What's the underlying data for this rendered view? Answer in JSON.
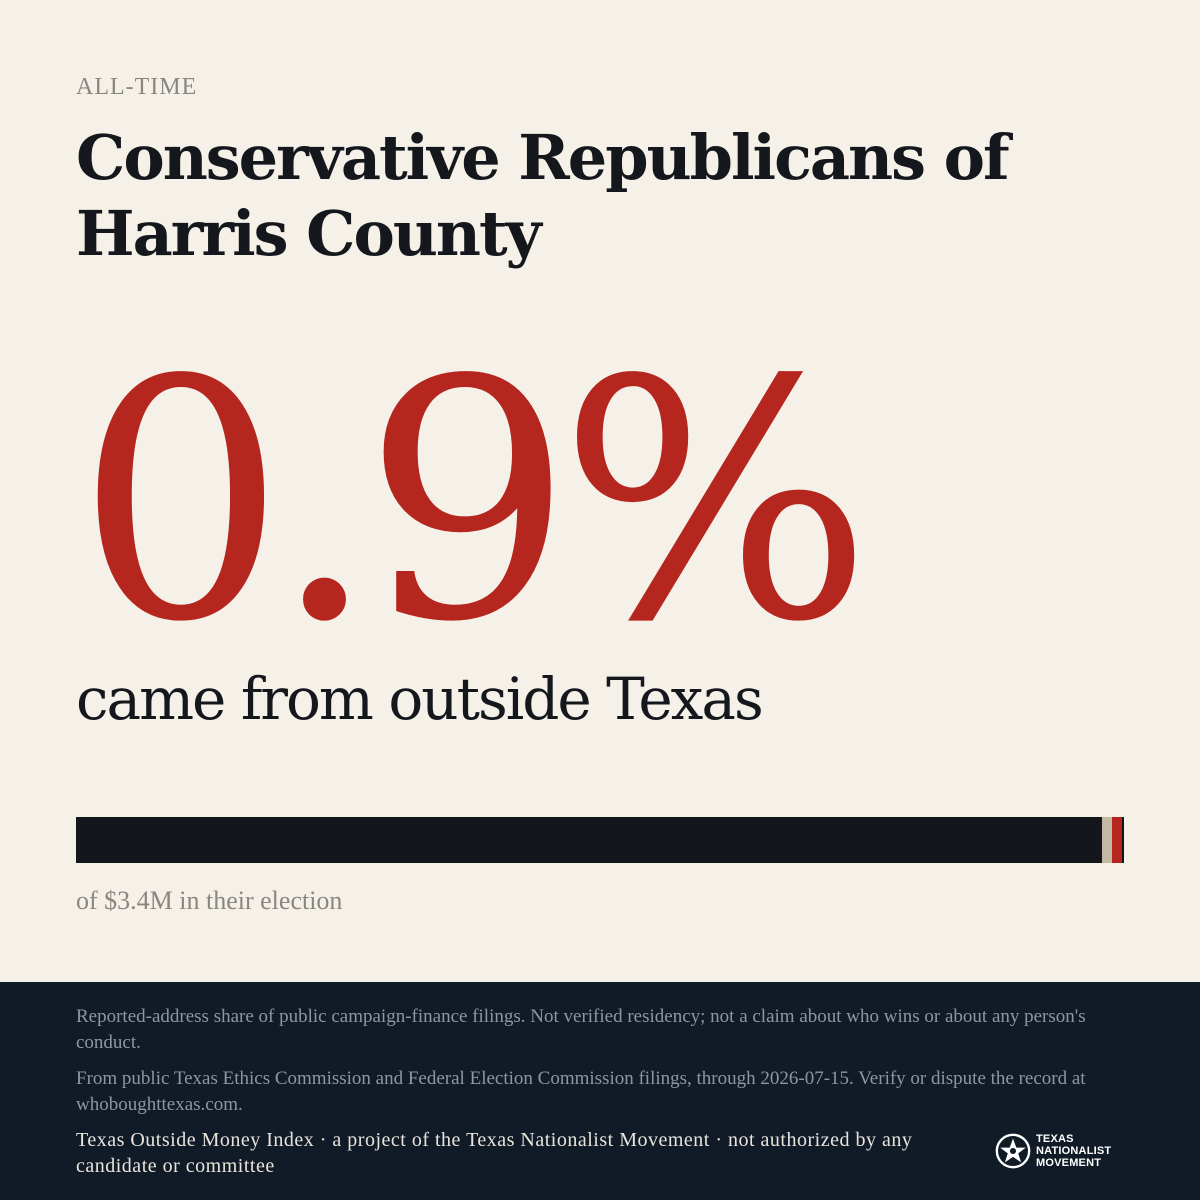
{
  "eyebrow": "ALL-TIME",
  "title": "Conservative Republicans of Harris County",
  "headline_percent": "0.9%",
  "headline_subtitle": "came from outside Texas",
  "share_bar": {
    "outside_share_fraction": 0.009,
    "colors": {
      "in_state": "#13161b",
      "outside_marker": "#c3b8a4",
      "outside": "#b5261e"
    }
  },
  "total_note": "of $3.4M in their election",
  "footer": {
    "disclaimer": "Reported-address share of public campaign-finance filings. Not verified residency; not a claim about who wins or about any person's conduct.",
    "source": "From public Texas Ethics Commission and Federal Election Commission filings, through 2026-07-15. Verify or dispute the record at whoboughttexas.com.",
    "credit": "Texas Outside Money Index · a project of the Texas Nationalist Movement · not authorized by any candidate or committee",
    "logo": {
      "icon": "star-seal-icon",
      "line1": "TEXAS",
      "line2": "NATIONALIST",
      "line3": "MOVEMENT"
    }
  },
  "colors": {
    "background": "#f5f0e8",
    "accent_red": "#b5261e",
    "ink": "#14171c",
    "footer_bg": "#111b27"
  }
}
